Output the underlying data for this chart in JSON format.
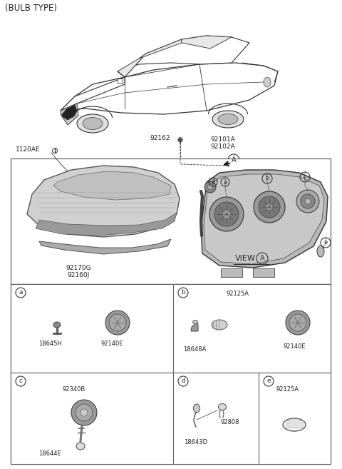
{
  "title": "(BULB TYPE)",
  "bg_color": "#ffffff",
  "text_color": "#222222",
  "border_color": "#666666",
  "font_size_title": 8.5,
  "font_size_label": 6.5,
  "font_size_part": 6.0,
  "parts": {
    "1120AE": "1120AE",
    "92162": "92162",
    "92101A": "92101A",
    "92102A": "92102A",
    "92170G": "92170G",
    "92160J": "92160J",
    "view_a": "VIEW",
    "18645H": "18645H",
    "92140E": "92140E",
    "92125A": "92125A",
    "18648A": "18648A",
    "92340B": "92340B",
    "18644E": "18644E",
    "18643D": "18643D",
    "92808": "92808"
  },
  "box_line_color": "#555555",
  "gray_light": "#d0d0d0",
  "gray_mid": "#aaaaaa",
  "gray_dark": "#888888",
  "gray_very_dark": "#555555"
}
